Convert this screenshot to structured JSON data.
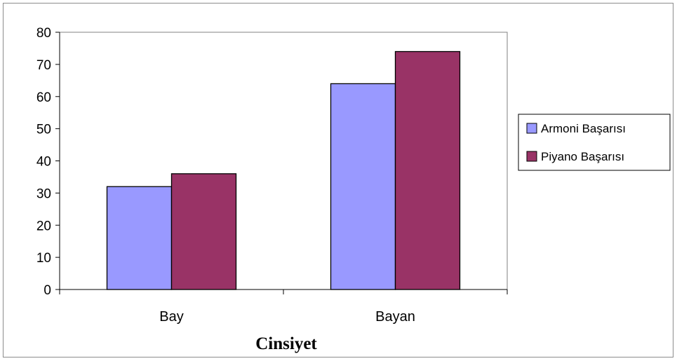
{
  "chart_data": {
    "type": "bar",
    "title": "",
    "xlabel": "Cinsiyet",
    "ylabel": "",
    "categories": [
      "Bay",
      "Bayan"
    ],
    "series": [
      {
        "name": "Armoni Başarısı",
        "values": [
          32,
          64
        ],
        "color": "#9999ff"
      },
      {
        "name": "Piyano Başarısı",
        "values": [
          36,
          74
        ],
        "color": "#993366"
      }
    ],
    "ylim": [
      0,
      80
    ],
    "yticks": [
      0,
      10,
      20,
      30,
      40,
      50,
      60,
      70,
      80
    ],
    "grid": false,
    "legend_position": "right"
  }
}
